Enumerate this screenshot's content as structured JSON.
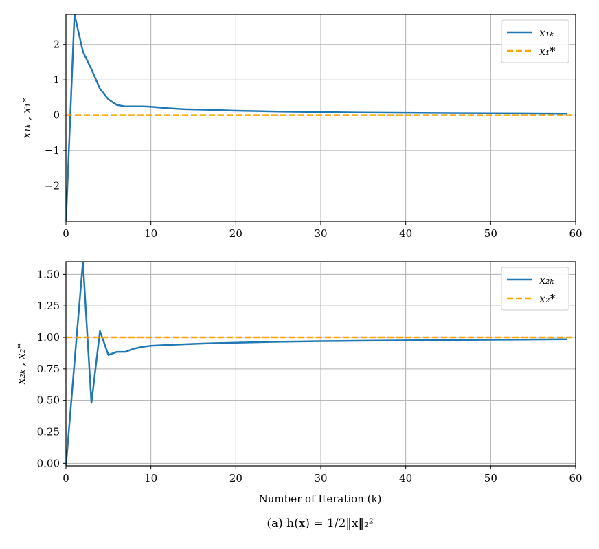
{
  "figure": {
    "xlabel": "Number of Iteration (k)",
    "caption": "(a) h(x) = 1/2‖x‖₂²"
  },
  "colors": {
    "series": "#1f77b4",
    "reference": "#ffa500",
    "grid": "#b0b0b0"
  },
  "chart_data": [
    {
      "type": "line",
      "title": "",
      "xlabel": "",
      "ylabel": "x₁ₖ , x₁*",
      "xlim": [
        0,
        60
      ],
      "ylim": [
        -3,
        2.85
      ],
      "xticks": [
        0,
        10,
        20,
        30,
        40,
        50,
        60
      ],
      "yticks": [
        -2,
        -1,
        0,
        1,
        2
      ],
      "ytick_labels": [
        "−2",
        "−1",
        "0",
        "1",
        "2"
      ],
      "grid": true,
      "legend_position": "top-right",
      "series": [
        {
          "name": "x₁ₖ",
          "style": "solid",
          "x": [
            0,
            1,
            2,
            3,
            4,
            5,
            6,
            7,
            8,
            9,
            10,
            12,
            14,
            17,
            20,
            25,
            30,
            35,
            40,
            45,
            50,
            55,
            59
          ],
          "y": [
            -3.0,
            2.85,
            1.8,
            1.3,
            0.75,
            0.45,
            0.29,
            0.25,
            0.25,
            0.25,
            0.24,
            0.2,
            0.17,
            0.155,
            0.13,
            0.105,
            0.09,
            0.077,
            0.068,
            0.062,
            0.057,
            0.052,
            0.048
          ]
        },
        {
          "name": "x₁*",
          "style": "dashed",
          "x": [
            0,
            60
          ],
          "y": [
            0,
            0
          ]
        }
      ]
    },
    {
      "type": "line",
      "title": "",
      "xlabel": "Number of Iteration (k)",
      "ylabel": "x₂ₖ , x₂*",
      "xlim": [
        0,
        60
      ],
      "ylim": [
        -0.02,
        1.6
      ],
      "xticks": [
        0,
        10,
        20,
        30,
        40,
        50,
        60
      ],
      "yticks": [
        0.0,
        0.25,
        0.5,
        0.75,
        1.0,
        1.25,
        1.5
      ],
      "ytick_labels": [
        "0.00",
        "0.25",
        "0.50",
        "0.75",
        "1.00",
        "1.25",
        "1.50"
      ],
      "grid": true,
      "legend_position": "top-right",
      "series": [
        {
          "name": "x₂ₖ",
          "style": "solid",
          "x": [
            0,
            1,
            2,
            3,
            4,
            5,
            6,
            7,
            8,
            9,
            10,
            12,
            15,
            17,
            20,
            25,
            30,
            40,
            50,
            59
          ],
          "y": [
            -0.02,
            0.8,
            1.6,
            0.48,
            1.05,
            0.86,
            0.885,
            0.885,
            0.91,
            0.925,
            0.933,
            0.94,
            0.948,
            0.953,
            0.958,
            0.965,
            0.97,
            0.976,
            0.981,
            0.985
          ]
        },
        {
          "name": "x₂*",
          "style": "dashed",
          "x": [
            0,
            60
          ],
          "y": [
            1.0,
            1.0
          ]
        }
      ]
    }
  ]
}
